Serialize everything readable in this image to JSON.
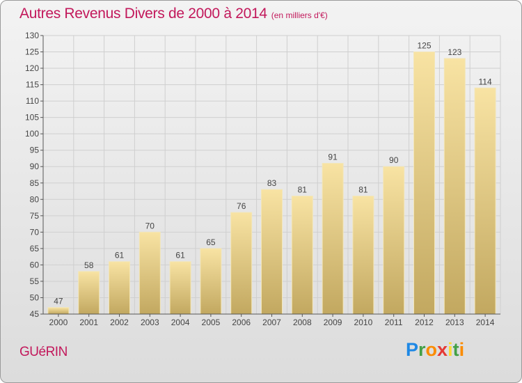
{
  "chart_data": {
    "type": "bar",
    "title": "Autres Revenus Divers de 2000 à 2014",
    "unit": "(en milliers d'€)",
    "categories": [
      "2000",
      "2001",
      "2002",
      "2003",
      "2004",
      "2005",
      "2006",
      "2007",
      "2008",
      "2009",
      "2010",
      "2011",
      "2012",
      "2013",
      "2014"
    ],
    "values": [
      47,
      58,
      61,
      70,
      61,
      65,
      76,
      83,
      81,
      91,
      81,
      90,
      125,
      123,
      114
    ],
    "ylim": [
      45,
      130
    ],
    "yticks": [
      45,
      50,
      55,
      60,
      65,
      70,
      75,
      80,
      85,
      90,
      95,
      100,
      105,
      110,
      115,
      120,
      125,
      130
    ],
    "grid": true,
    "data_labels": true
  },
  "commune": "GUéRIN",
  "brand": {
    "letters": [
      "P",
      "r",
      "o",
      "x",
      "i",
      "t",
      "i"
    ],
    "colors": [
      "#1e88e5",
      "#43a047",
      "#fb8c00",
      "#e53935",
      "#fdd835",
      "#43a047",
      "#fb8c00"
    ]
  },
  "colors": {
    "title": "#c2185b",
    "bar_light": "#f7e09f",
    "bar_dark": "#c4aa62",
    "grid": "#cfcfcf"
  }
}
